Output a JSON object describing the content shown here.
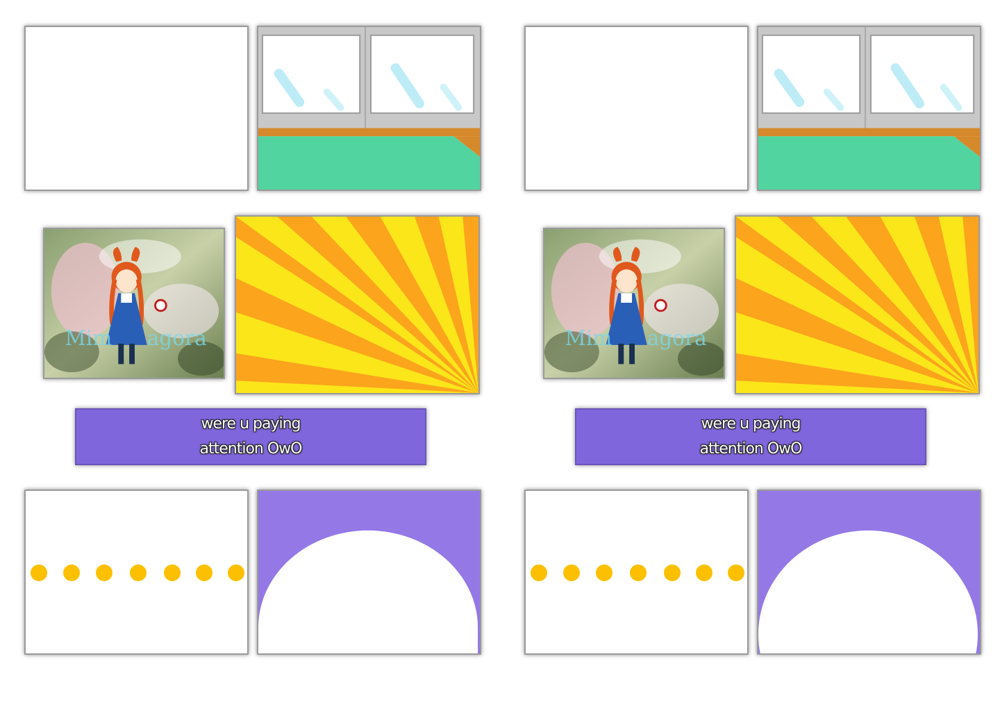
{
  "caption": {
    "line1": "were u paying",
    "line2": "attention OwO"
  },
  "colors": {
    "caption_bg": "#8066dc",
    "floor": "#52d4a0",
    "wall_trim": "#d6892a",
    "ray_yellow": "#fbe61a",
    "ray_orange": "#fba41c",
    "dot": "#fcc000",
    "purple_bg": "#9478e6"
  },
  "panels": {
    "photo_icon": "anime-girl-illustration",
    "dots_count": 7
  }
}
